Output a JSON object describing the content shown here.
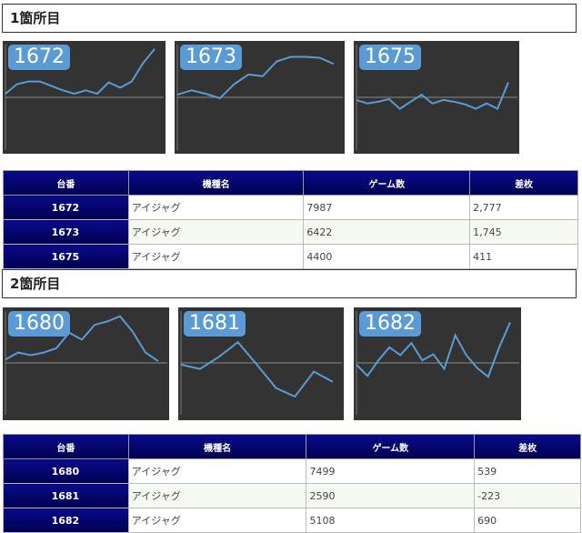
{
  "sections": [
    {
      "title": "1箇所目",
      "machines": [
        {
          "num": "1672",
          "model": "アイジャグ",
          "games": "7987",
          "diff": "2,777",
          "negative": false
        },
        {
          "num": "1673",
          "model": "アイジャグ",
          "games": "6422",
          "diff": "1,745",
          "negative": false
        },
        {
          "num": "1675",
          "model": "アイジャグ",
          "games": "4400",
          "diff": "411",
          "negative": false
        }
      ]
    },
    {
      "title": "2箇所目",
      "machines": [
        {
          "num": "1680",
          "model": "アイジャグ",
          "games": "7499",
          "diff": "539",
          "negative": false
        },
        {
          "num": "1681",
          "model": "アイジャグ",
          "games": "2590",
          "diff": "-223",
          "negative": true
        },
        {
          "num": "1682",
          "model": "アイジャグ",
          "games": "5108",
          "diff": "690",
          "negative": false
        }
      ]
    }
  ],
  "table_headers": {
    "num": "台番",
    "model": "機種名",
    "games": "ゲーム数",
    "diff": "差枚"
  },
  "chart_data": [
    {
      "type": "line",
      "title": "1672",
      "x": [
        0,
        1,
        2,
        3,
        4,
        5,
        6,
        7,
        8,
        9,
        10,
        11,
        12,
        13
      ],
      "y": [
        400,
        1500,
        1800,
        1800,
        1300,
        800,
        400,
        800,
        400,
        1700,
        1100,
        1800,
        3900,
        5500
      ]
    },
    {
      "type": "line",
      "title": "1673",
      "x": [
        0,
        1,
        2,
        3,
        4,
        5,
        6,
        7,
        8,
        9,
        10,
        11
      ],
      "y": [
        300,
        800,
        400,
        -100,
        1500,
        2600,
        2400,
        4100,
        4600,
        4600,
        4500,
        3800
      ]
    },
    {
      "type": "line",
      "title": "1675",
      "x": [
        0,
        1,
        2,
        3,
        4,
        5,
        6,
        7,
        8,
        9,
        10,
        11,
        12,
        13,
        14
      ],
      "y": [
        -300,
        -700,
        -500,
        -200,
        -1300,
        -500,
        300,
        -700,
        -300,
        -500,
        -800,
        -1300,
        -700,
        -1300,
        1700
      ]
    },
    {
      "type": "line",
      "title": "1680",
      "x": [
        0,
        1,
        2,
        3,
        4,
        5,
        6,
        7,
        8,
        9,
        10,
        11,
        12
      ],
      "y": [
        400,
        1200,
        900,
        1200,
        1700,
        3500,
        2700,
        4400,
        4800,
        5400,
        3600,
        1200,
        200
      ]
    },
    {
      "type": "line",
      "title": "1681",
      "x": [
        0,
        1,
        2,
        3,
        4,
        5,
        6,
        7,
        8
      ],
      "y": [
        -200,
        -700,
        700,
        2400,
        -200,
        -2900,
        -3900,
        -1000,
        -2200
      ]
    },
    {
      "type": "line",
      "title": "1682",
      "x": [
        0,
        1,
        2,
        3,
        4,
        5,
        6,
        7,
        8,
        9,
        10,
        11,
        12,
        13,
        14
      ],
      "y": [
        -200,
        -1500,
        300,
        1800,
        900,
        2300,
        300,
        1000,
        -700,
        3200,
        900,
        -600,
        -1600,
        1800,
        4700
      ]
    }
  ],
  "colors": {
    "line": "#5b9bd5",
    "chart_bg": "#333333",
    "header_bg": "#000070",
    "negative": "#e03030"
  }
}
